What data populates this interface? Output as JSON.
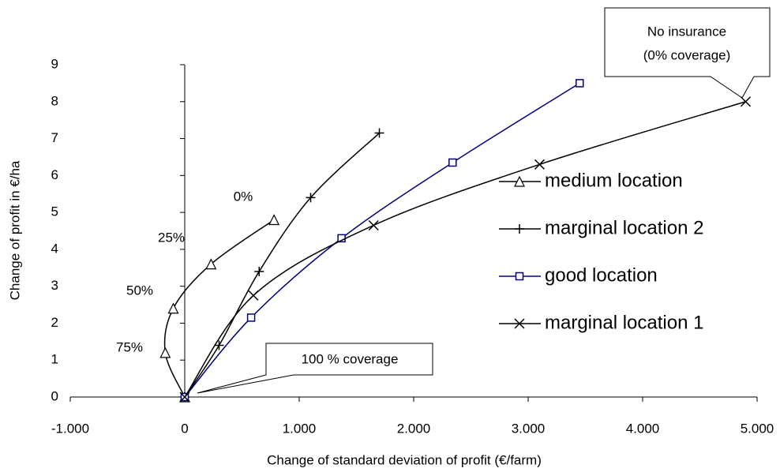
{
  "chart_data": {
    "type": "line",
    "xlabel": "Change of standard deviation of profit (€/farm)",
    "ylabel": "Change of profit in €/ha",
    "xlim": [
      -1000,
      5000
    ],
    "xticks": [
      {
        "value": -1000,
        "label": "-1.000"
      },
      0,
      {
        "value": 1000,
        "label": "1.000"
      },
      {
        "value": 2000,
        "label": "2.000"
      },
      {
        "value": 3000,
        "label": "3.000"
      },
      {
        "value": 4000,
        "label": "4.000"
      },
      {
        "value": 5000,
        "label": "5.000"
      }
    ],
    "ylim": [
      0,
      9
    ],
    "yticks": [
      0,
      1,
      2,
      3,
      4,
      5,
      6,
      7,
      8,
      9
    ],
    "grid": false,
    "legend": "right",
    "series": [
      {
        "name": "medium location",
        "color": "#000000",
        "marker": "triangle",
        "x": [
          0,
          -170,
          -100,
          230,
          780
        ],
        "values": [
          0,
          1.2,
          2.4,
          3.6,
          4.8
        ]
      },
      {
        "name": "marginal location 2",
        "color": "#000000",
        "marker": "plus",
        "x": [
          0,
          300,
          650,
          1100,
          1700
        ],
        "values": [
          0,
          1.4,
          3.4,
          5.4,
          7.15
        ]
      },
      {
        "name": "good location",
        "color": "#000080",
        "marker": "square",
        "x": [
          0,
          580,
          1370,
          2340,
          3450
        ],
        "values": [
          0,
          2.15,
          4.3,
          6.35,
          8.5
        ]
      },
      {
        "name": "marginal location 1",
        "color": "#000000",
        "marker": "cross",
        "x": [
          0,
          600,
          1650,
          3100,
          4900
        ],
        "values": [
          0,
          2.75,
          4.65,
          6.3,
          8.0
        ]
      }
    ],
    "annotations": [
      "0%",
      "25%",
      "50%",
      "75%",
      "100 % coverage",
      "No insurance",
      "(0% coverage)"
    ]
  }
}
